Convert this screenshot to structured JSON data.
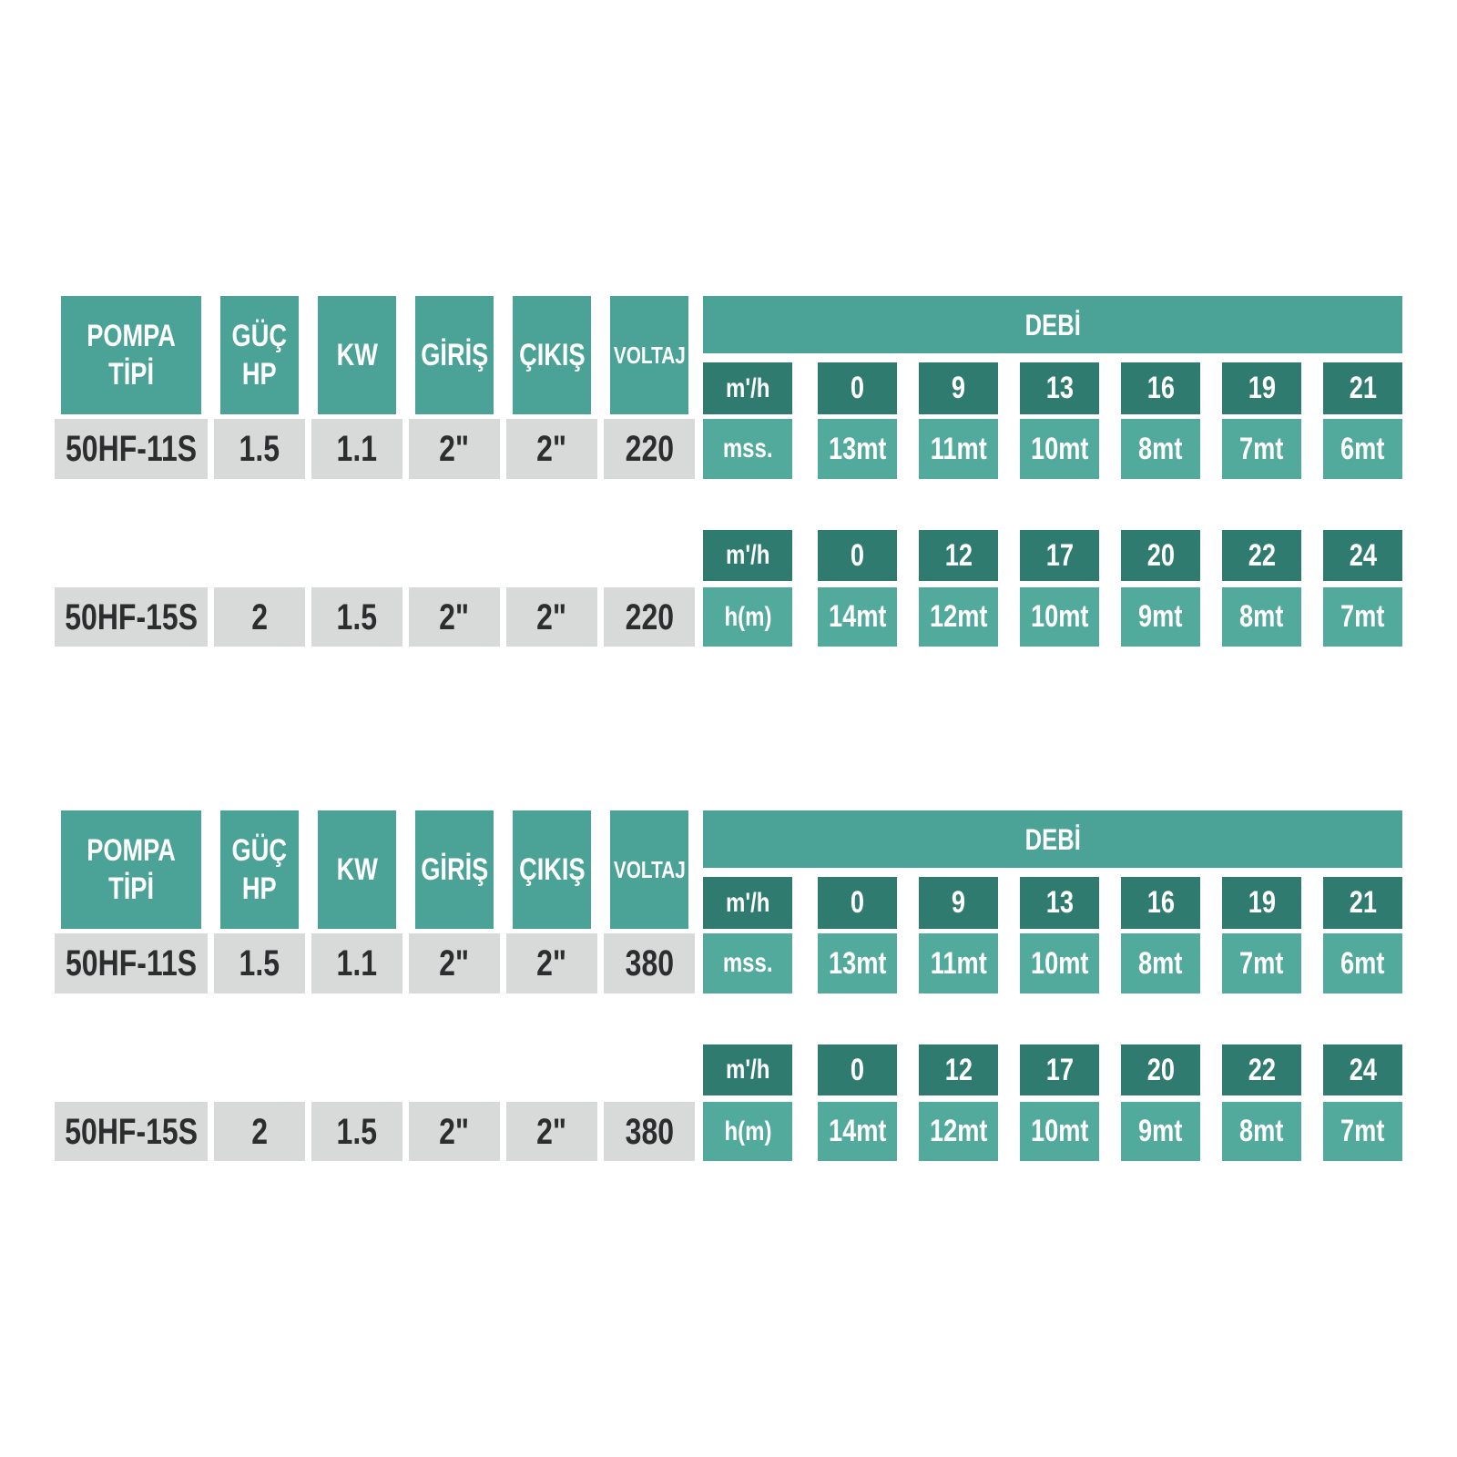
{
  "colors": {
    "teal": "#4aa396",
    "teal_dark": "#2f7b6f",
    "teal_light": "#52aa9c",
    "gray": "#d8dad9",
    "text_dark": "#2b2e2e",
    "background": "#ffffff"
  },
  "left_headers": [
    {
      "id": "pompa-tipi",
      "lines": [
        "POMPA",
        "TİPİ"
      ]
    },
    {
      "id": "guc-hp",
      "lines": [
        "GÜÇ",
        "HP"
      ]
    },
    {
      "id": "kw",
      "lines": [
        "KW"
      ]
    },
    {
      "id": "giris",
      "lines": [
        "GİRİŞ"
      ]
    },
    {
      "id": "cikis",
      "lines": [
        "ÇIKIŞ"
      ]
    },
    {
      "id": "voltaj",
      "lines": [
        "VOLTAJ"
      ]
    }
  ],
  "debi_label": "DEBİ",
  "tables": [
    {
      "name": "220 volt table",
      "rows": [
        {
          "pump_type": "50HF-11S",
          "power_hp": "1.5",
          "kw": "1.1",
          "inlet": "2\"",
          "outlet": "2\"",
          "voltage": "220",
          "flow_unit": "m'/h",
          "flow_values": [
            "0",
            "9",
            "13",
            "16",
            "19",
            "21"
          ],
          "head_unit": "mss.",
          "head_values": [
            "13mt",
            "11mt",
            "10mt",
            "8mt",
            "7mt",
            "6mt"
          ]
        },
        {
          "pump_type": "50HF-15S",
          "power_hp": "2",
          "kw": "1.5",
          "inlet": "2\"",
          "outlet": "2\"",
          "voltage": "220",
          "flow_unit": "m'/h",
          "flow_values": [
            "0",
            "12",
            "17",
            "20",
            "22",
            "24"
          ],
          "head_unit": "h(m)",
          "head_values": [
            "14mt",
            "12mt",
            "10mt",
            "9mt",
            "8mt",
            "7mt"
          ]
        }
      ]
    },
    {
      "name": "380 volt table",
      "rows": [
        {
          "pump_type": "50HF-11S",
          "power_hp": "1.5",
          "kw": "1.1",
          "inlet": "2\"",
          "outlet": "2\"",
          "voltage": "380",
          "flow_unit": "m'/h",
          "flow_values": [
            "0",
            "9",
            "13",
            "16",
            "19",
            "21"
          ],
          "head_unit": "mss.",
          "head_values": [
            "13mt",
            "11mt",
            "10mt",
            "8mt",
            "7mt",
            "6mt"
          ]
        },
        {
          "pump_type": "50HF-15S",
          "power_hp": "2",
          "kw": "1.5",
          "inlet": "2\"",
          "outlet": "2\"",
          "voltage": "380",
          "flow_unit": "m'/h",
          "flow_values": [
            "0",
            "12",
            "17",
            "20",
            "22",
            "24"
          ],
          "head_unit": "h(m)",
          "head_values": [
            "14mt",
            "12mt",
            "10mt",
            "9mt",
            "8mt",
            "7mt"
          ]
        }
      ]
    }
  ]
}
